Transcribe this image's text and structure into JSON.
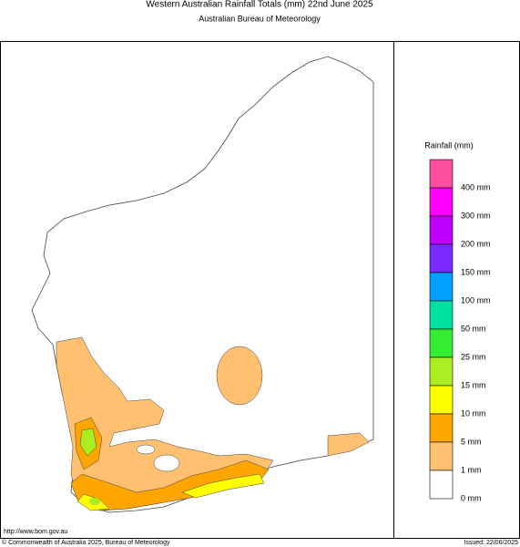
{
  "header": {
    "title": "Western Australian Rainfall Totals (mm) 22nd June 2025",
    "subtitle": "Australian Bureau of Meteorology"
  },
  "legend": {
    "title": "Rainfall (mm)",
    "colors": [
      "#ff4fa0",
      "#ff00ff",
      "#c000ff",
      "#7a2cff",
      "#00a0ff",
      "#00e0a0",
      "#33ee33",
      "#aaee22",
      "#ffff00",
      "#ffa500",
      "#ffc070",
      "#ffffff"
    ],
    "labels": [
      "400 mm",
      "300 mm",
      "200 mm",
      "150 mm",
      "100 mm",
      "50 mm",
      "25 mm",
      "15 mm",
      "10 mm",
      "5 mm",
      "1 mm",
      "0 mm"
    ]
  },
  "footer": {
    "url": "http://www.bom.gov.au",
    "copyright": "© Commonwealth of Australia 2025, Bureau of Meteorology",
    "issued": "Issued: 22/06/2025"
  }
}
